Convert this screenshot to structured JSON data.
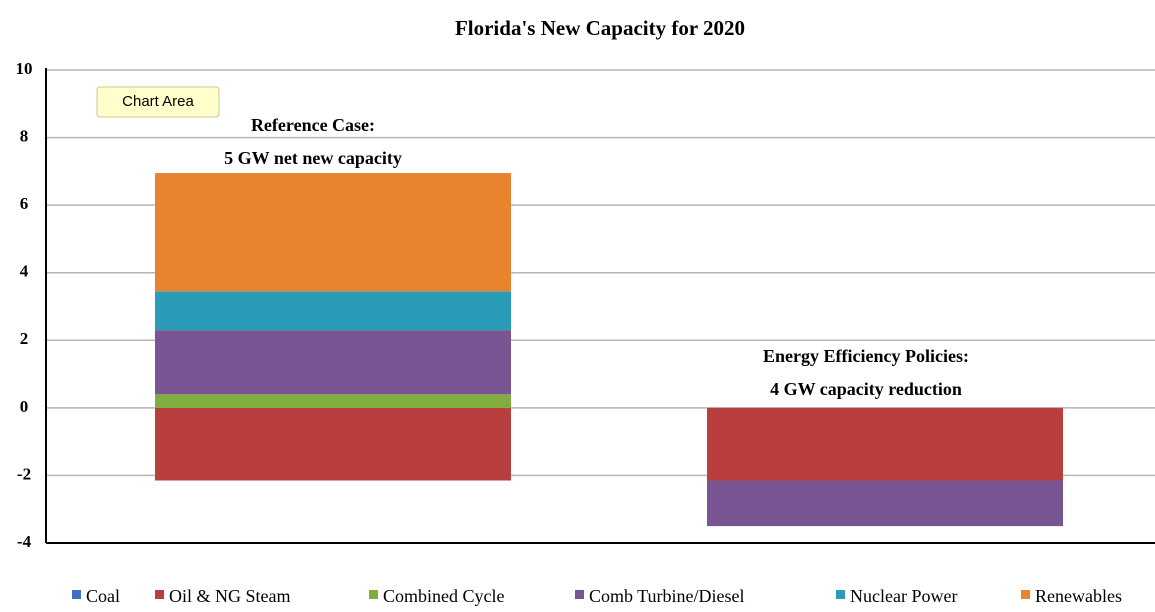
{
  "chart_data": {
    "type": "stacked-bar",
    "title": "Florida's New Capacity for 2020",
    "series": [
      {
        "name": "Coal",
        "color": "#3b70c4",
        "values": [
          0,
          0
        ]
      },
      {
        "name": "Oil & NG Steam",
        "color": "#b93f3f",
        "values": [
          -2.15,
          -2.15
        ]
      },
      {
        "name": "Combined Cycle",
        "color": "#80ad3e",
        "values": [
          0.4,
          0
        ]
      },
      {
        "name": "Comb Turbine/Diesel",
        "color": "#795593",
        "values": [
          1.9,
          -1.35
        ]
      },
      {
        "name": "Nuclear Power",
        "color": "#2a9cb8",
        "values": [
          1.15,
          0
        ]
      },
      {
        "name": "Renewables",
        "color": "#e8832e",
        "values": [
          3.5,
          0
        ]
      }
    ],
    "annotations": [
      [
        "Reference Case:",
        "5 GW net new capacity"
      ],
      [
        "Energy Efficiency Policies:",
        "4 GW capacity reduction"
      ]
    ],
    "tooltip": "Chart Area",
    "ylim": [
      -4,
      10
    ],
    "yticks": [
      -4,
      -2,
      0,
      2,
      4,
      6,
      8,
      10
    ],
    "grid": true
  }
}
